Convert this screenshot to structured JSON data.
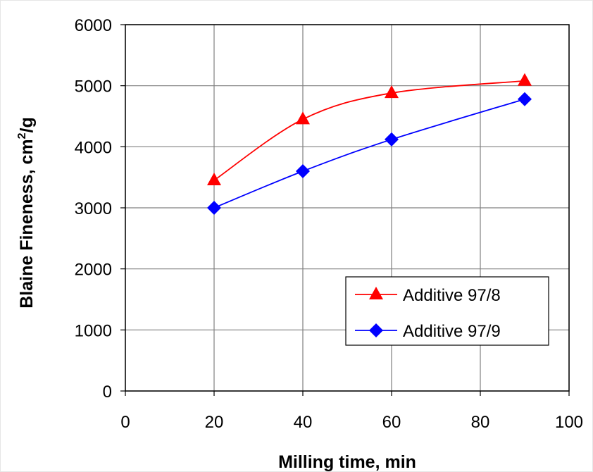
{
  "chart_data": {
    "type": "line",
    "title": "",
    "xlabel": "Milling time, min",
    "ylabel": {
      "main": "Blaine Fineness, cm",
      "sup": "2",
      "tail": "/g"
    },
    "xlim": [
      0,
      100
    ],
    "ylim": [
      0,
      6000
    ],
    "x_ticks": [
      "0",
      "20",
      "40",
      "60",
      "80",
      "100"
    ],
    "y_ticks": [
      "0",
      "1000",
      "2000",
      "3000",
      "4000",
      "5000",
      "6000"
    ],
    "grid": true,
    "legend_position": "lower-right",
    "series": [
      {
        "name": "Additive 97/8",
        "color": "#ff0000",
        "marker": "triangle",
        "x": [
          20,
          40,
          60,
          90
        ],
        "y": [
          3450,
          4450,
          4880,
          5080
        ]
      },
      {
        "name": "Additive 97/9",
        "color": "#0000ff",
        "marker": "diamond",
        "x": [
          20,
          40,
          60,
          90
        ],
        "y": [
          3000,
          3600,
          4120,
          4780
        ]
      }
    ]
  }
}
